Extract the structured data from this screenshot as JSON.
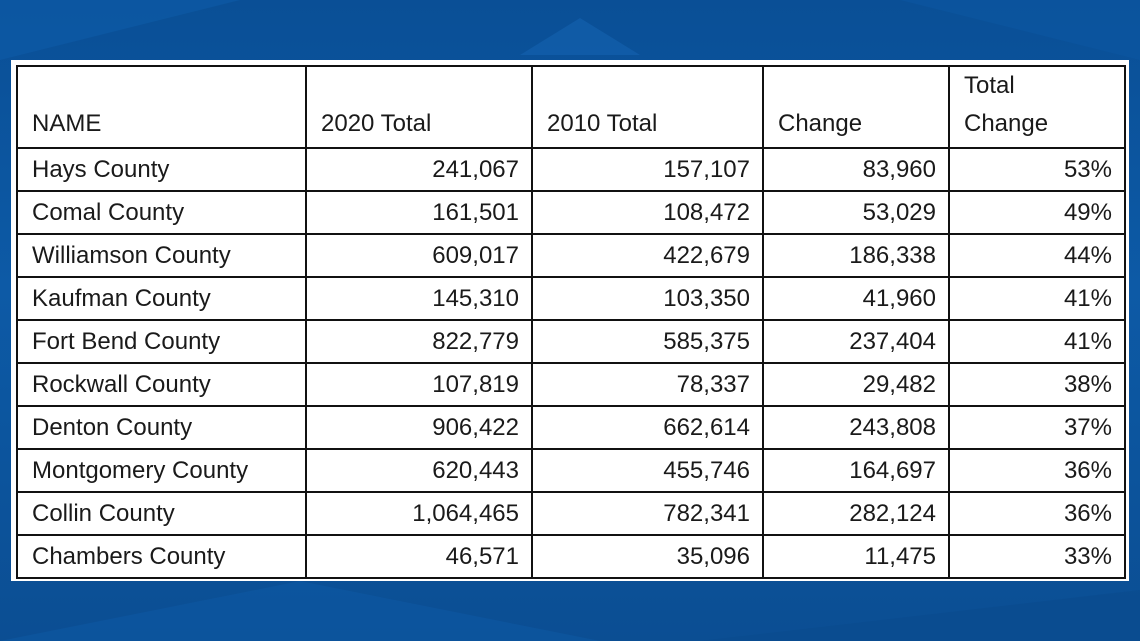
{
  "chart_data": {
    "type": "table",
    "columns": [
      "NAME",
      "2020 Total",
      "2010 Total",
      "Change",
      "Total Change"
    ],
    "rows": [
      [
        "Hays County",
        "241,067",
        "157,107",
        "83,960",
        "53%"
      ],
      [
        "Comal County",
        "161,501",
        "108,472",
        "53,029",
        "49%"
      ],
      [
        "Williamson County",
        "609,017",
        "422,679",
        "186,338",
        "44%"
      ],
      [
        "Kaufman County",
        "145,310",
        "103,350",
        "41,960",
        "41%"
      ],
      [
        "Fort Bend County",
        "822,779",
        "585,375",
        "237,404",
        "41%"
      ],
      [
        "Rockwall County",
        "107,819",
        "78,337",
        "29,482",
        "38%"
      ],
      [
        "Denton County",
        "906,422",
        "662,614",
        "243,808",
        "37%"
      ],
      [
        "Montgomery County",
        "620,443",
        "455,746",
        "164,697",
        "36%"
      ],
      [
        "Collin County",
        "1,064,465",
        "782,341",
        "282,124",
        "36%"
      ],
      [
        "Chambers County",
        "46,571",
        "35,096",
        "11,475",
        "33%"
      ]
    ],
    "values": {
      "2020 Total": [
        241067,
        161501,
        609017,
        145310,
        822779,
        107819,
        906422,
        620443,
        1064465,
        46571
      ],
      "2010 Total": [
        157107,
        108472,
        422679,
        103350,
        585375,
        78337,
        662614,
        455746,
        782341,
        35096
      ],
      "Change": [
        83960,
        53029,
        186338,
        41960,
        237404,
        29482,
        243808,
        164697,
        282124,
        11475
      ],
      "Total Change": [
        53,
        49,
        44,
        41,
        41,
        38,
        37,
        36,
        36,
        33
      ]
    }
  },
  "header": {
    "name": "NAME",
    "total2020": "2020 Total",
    "total2010": "2010 Total",
    "change": "Change",
    "total_change_line1": "Total",
    "total_change_line2": "Change"
  },
  "colors": {
    "background": "#0b5299",
    "panel": "#ffffff",
    "border": "#111111",
    "text": "#1a1a1a"
  }
}
